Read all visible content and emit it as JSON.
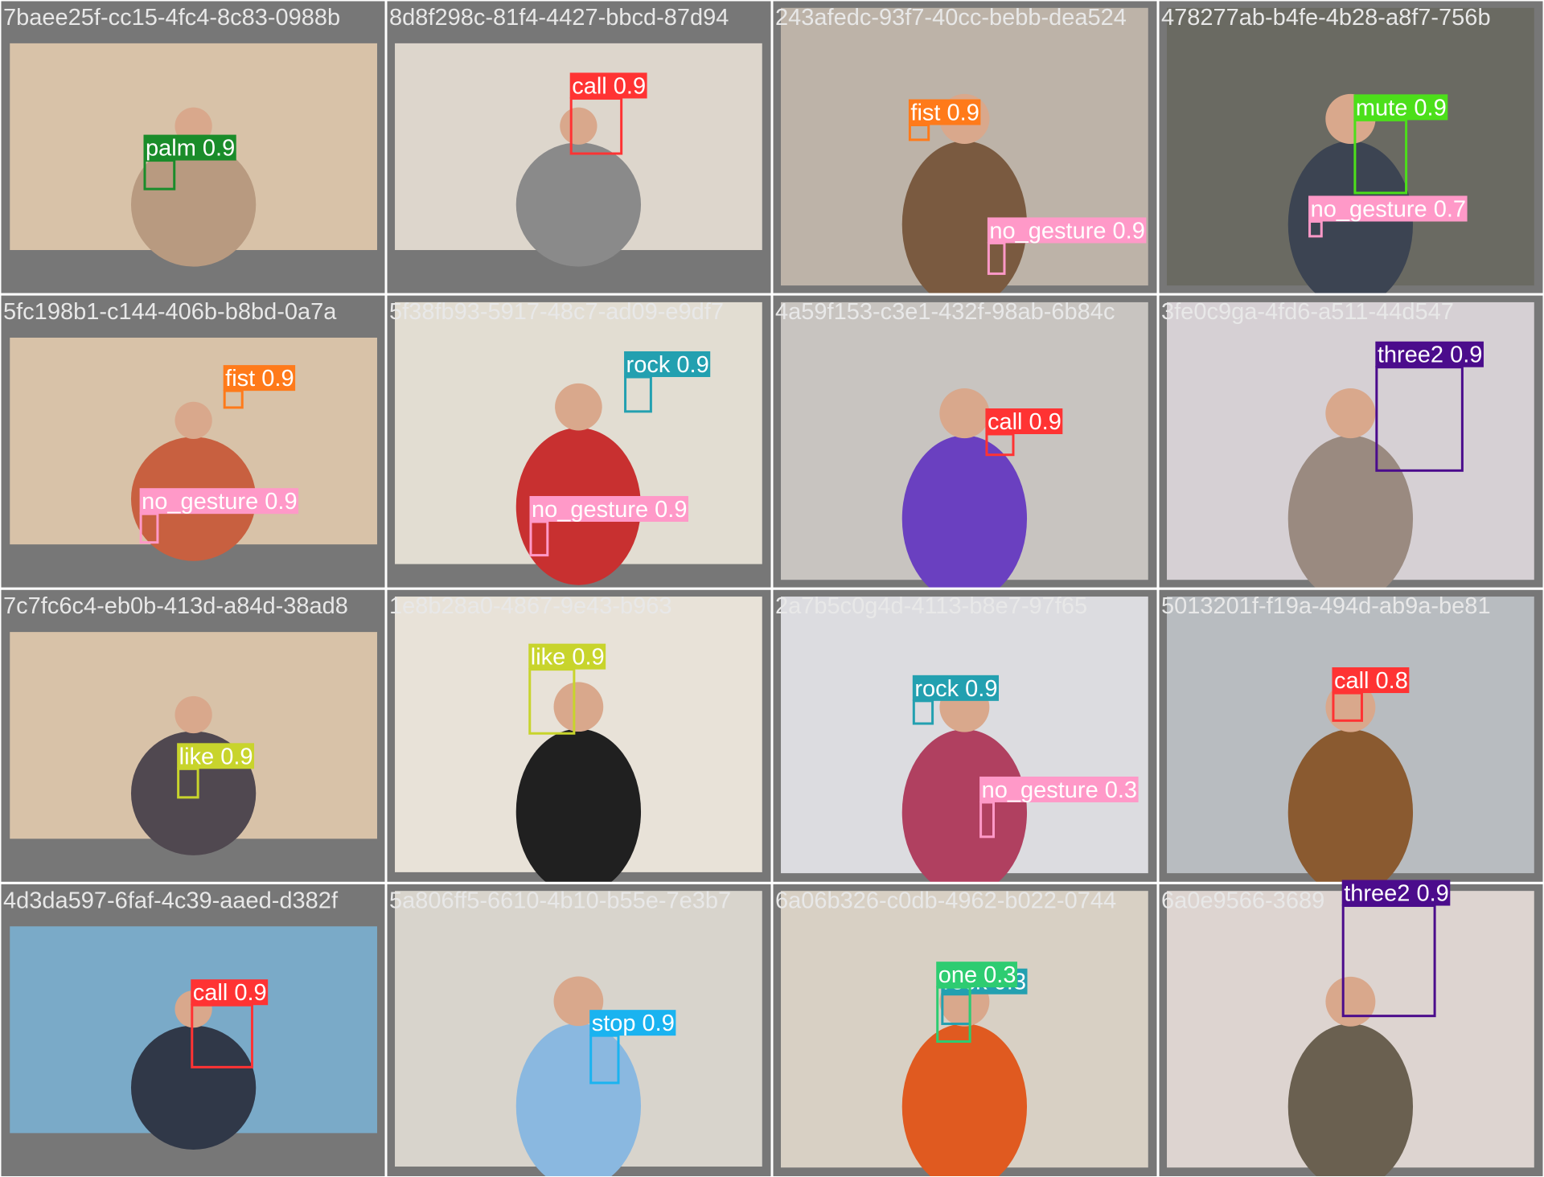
{
  "tiles": [
    {
      "filename": "7baee25f-cc15-4fc4-8c83-0988b",
      "detections": [
        {
          "label": "palm 0.9",
          "color": "#1a8c2a"
        }
      ]
    },
    {
      "filename": "8d8f298c-81f4-4427-bbcd-87d94",
      "detections": [
        {
          "label": "call 0.9",
          "color": "#ff3333"
        }
      ]
    },
    {
      "filename": "243afedc-93f7-40cc-bebb-dea524",
      "detections": [
        {
          "label": "fist 0.9",
          "color": "#ff7a1a"
        },
        {
          "label": "no_gesture 0.9",
          "color": "#ff99c8"
        }
      ]
    },
    {
      "filename": "478277ab-b4fe-4b28-a8f7-756b",
      "detections": [
        {
          "label": "mute 0.9",
          "color": "#4cdf1a"
        },
        {
          "label": "no_gesture 0.7",
          "color": "#ff99c8"
        }
      ]
    },
    {
      "filename": "5fc198b1-c144-406b-b8bd-0a7a",
      "detections": [
        {
          "label": "fist 0.9",
          "color": "#ff7a1a"
        },
        {
          "label": "no_gesture 0.9",
          "color": "#ff99c8"
        }
      ]
    },
    {
      "filename": "5f38fb93-5917-48c7-ad09-e9df7",
      "detections": [
        {
          "label": "rock 0.9",
          "color": "#23a0b0"
        },
        {
          "label": "no_gesture 0.9",
          "color": "#ff99c8"
        }
      ]
    },
    {
      "filename": "4a59f153-c3e1-432f-98ab-6b84c",
      "detections": [
        {
          "label": "call 0.9",
          "color": "#ff3333"
        }
      ]
    },
    {
      "filename": "3fe0c9ga-4fd6-a511-44d547",
      "detections": [
        {
          "label": "three2 0.9",
          "color": "#4b0c8c"
        }
      ]
    },
    {
      "filename": "7c7fc6c4-eb0b-413d-a84d-38ad8",
      "detections": [
        {
          "label": "like 0.9",
          "color": "#c8d42c"
        }
      ]
    },
    {
      "filename": "1e8b28a0-4867-9e43-b963",
      "detections": [
        {
          "label": "like 0.9",
          "color": "#c8d42c"
        }
      ]
    },
    {
      "filename": "2a7b5c0g4d-4113-b8e7-97f65",
      "detections": [
        {
          "label": "rock 0.9",
          "color": "#23a0b0"
        },
        {
          "label": "no_gesture 0.3",
          "color": "#ff99c8"
        }
      ]
    },
    {
      "filename": "5013201f-f19a-494d-ab9a-be81",
      "detections": [
        {
          "label": "call 0.8",
          "color": "#ff3333"
        }
      ]
    },
    {
      "filename": "4d3da597-6faf-4c39-aaed-d382f",
      "detections": [
        {
          "label": "call 0.9",
          "color": "#ff3333"
        }
      ]
    },
    {
      "filename": "5a806ff5-6610-4b10-b55e-7e3b7",
      "detections": [
        {
          "label": "stop 0.9",
          "color": "#1ab3f0"
        }
      ]
    },
    {
      "filename": "6a06b326-c0db-4962-b022-0744",
      "detections": [
        {
          "label": "rock 0.3",
          "color": "#23a0b0"
        },
        {
          "label": "one 0.3",
          "color": "#2ecc71"
        }
      ]
    },
    {
      "filename": "6a0e9566-3689",
      "detections": [
        {
          "label": "three2 0.9",
          "color": "#4b0c8c"
        }
      ]
    }
  ]
}
